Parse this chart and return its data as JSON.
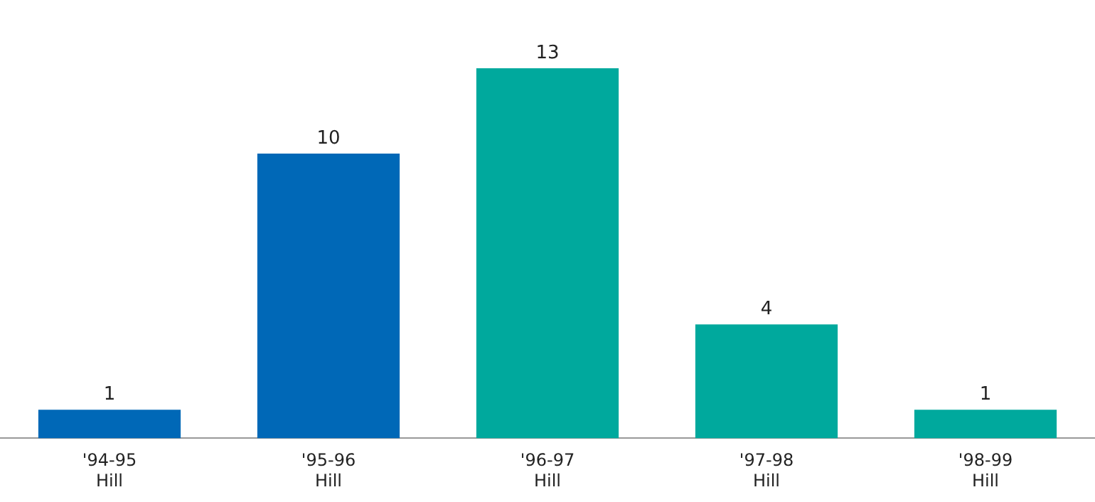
{
  "chart_data": {
    "type": "bar",
    "categories": [
      "'94-95\nHill",
      "'95-96\nHill",
      "'96-97\nHill",
      "'97-98\nHill",
      "'98-99\nHill"
    ],
    "values": [
      1,
      10,
      13,
      4,
      1
    ],
    "colors": [
      "#0068b7",
      "#0068b7",
      "#00a99d",
      "#00a99d",
      "#00a99d"
    ],
    "data_labels": true,
    "grid": false,
    "legend": false,
    "tick_labels": "x"
  }
}
